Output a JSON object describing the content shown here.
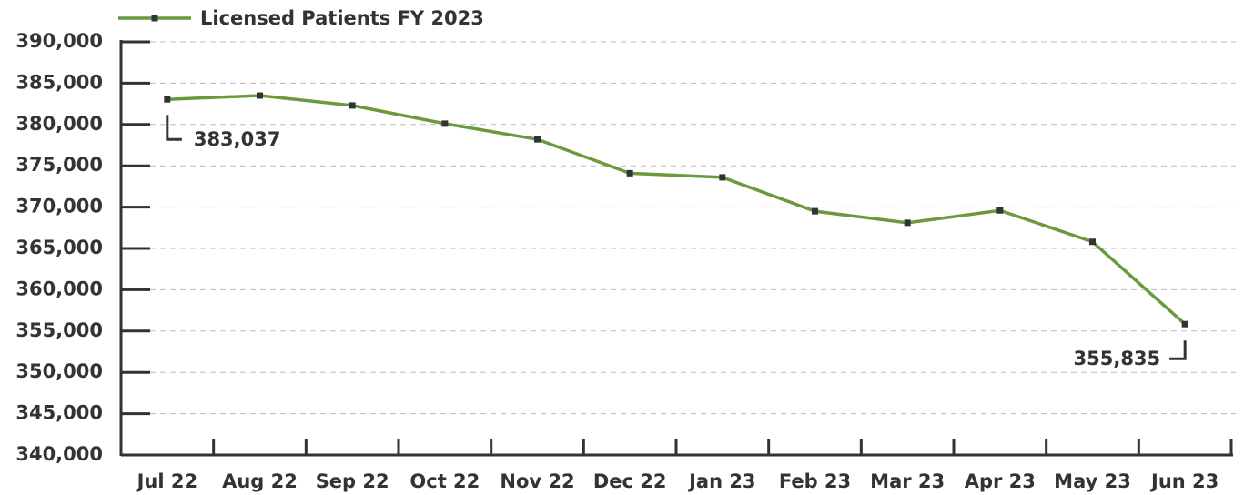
{
  "chart_data": {
    "type": "line",
    "categories": [
      "Jul 22",
      "Aug 22",
      "Sep 22",
      "Oct 22",
      "Nov 22",
      "Dec 22",
      "Jan 23",
      "Feb 23",
      "Mar 23",
      "Apr 23",
      "May 23",
      "Jun 23"
    ],
    "series": [
      {
        "name": "Licensed Patients FY 2023",
        "color": "#6a9a3c",
        "values": [
          383037,
          383500,
          382300,
          380100,
          378200,
          374100,
          373600,
          369500,
          368100,
          369600,
          365800,
          355835
        ],
        "value_labels": [
          "383,037",
          null,
          null,
          null,
          null,
          null,
          null,
          null,
          null,
          null,
          null,
          "355,835"
        ]
      }
    ],
    "ylim": [
      340000,
      390000
    ],
    "yticks": [
      {
        "value": 340000,
        "label": "340,000"
      },
      {
        "value": 345000,
        "label": "345,000"
      },
      {
        "value": 350000,
        "label": "350,000"
      },
      {
        "value": 355000,
        "label": "355,000"
      },
      {
        "value": 360000,
        "label": "360,000"
      },
      {
        "value": 365000,
        "label": "365,000"
      },
      {
        "value": 370000,
        "label": "370,000"
      },
      {
        "value": 375000,
        "label": "375,000"
      },
      {
        "value": 380000,
        "label": "380,000"
      },
      {
        "value": 385000,
        "label": "385,000"
      },
      {
        "value": 390000,
        "label": "390,000"
      }
    ],
    "grid": true,
    "legend": "top"
  }
}
